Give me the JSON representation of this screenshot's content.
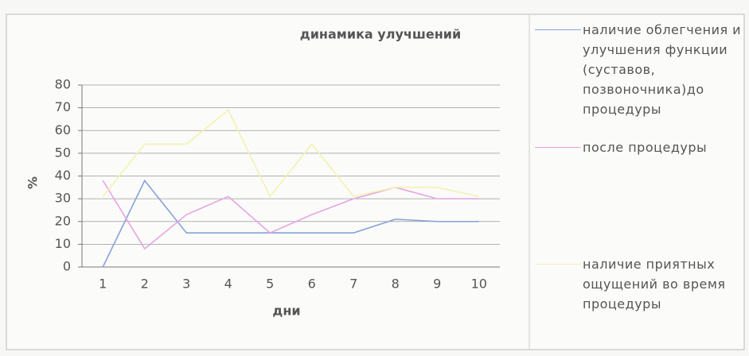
{
  "chart_data": {
    "type": "line",
    "title": "динамика улучшений",
    "x_label": "дни",
    "y_label": "%",
    "categories": [
      1,
      2,
      3,
      4,
      5,
      6,
      7,
      8,
      9,
      10
    ],
    "series": [
      {
        "name": "наличие облегчения и улучшения функции (суставов, позвоночника)до процедуры",
        "color": "#86a3d8",
        "values": [
          0,
          38,
          15,
          15,
          15,
          15,
          15,
          21,
          20,
          20
        ]
      },
      {
        "name": "после процедуры",
        "color": "#e8a3e2",
        "values": [
          38,
          8,
          23,
          31,
          15,
          23,
          30,
          35,
          30,
          30
        ]
      },
      {
        "name": "наличие приятных ощущений во время процедуры",
        "color": "#f2f2b0",
        "values": [
          31,
          54,
          54,
          69,
          31,
          54,
          31,
          35,
          35,
          31
        ]
      }
    ],
    "ylim": [
      0,
      80
    ],
    "yticks": [
      0,
      10,
      20,
      30,
      40,
      50,
      60,
      70,
      80
    ],
    "grid": true
  }
}
